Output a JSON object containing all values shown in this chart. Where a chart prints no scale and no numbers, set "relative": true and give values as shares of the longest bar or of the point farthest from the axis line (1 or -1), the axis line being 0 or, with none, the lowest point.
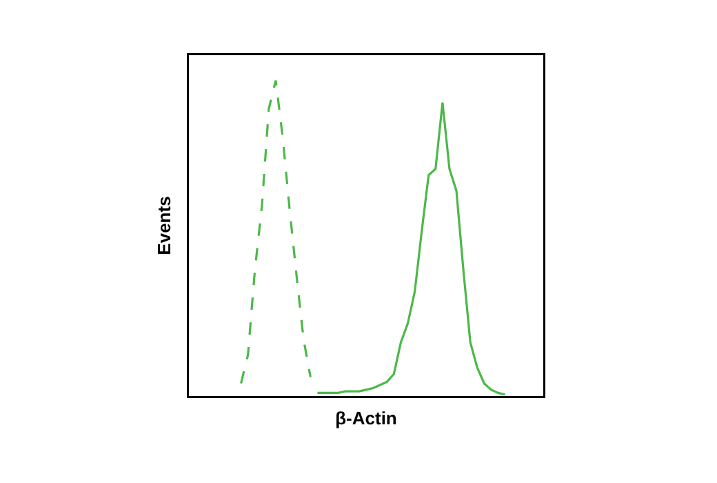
{
  "chart_data": {
    "type": "line",
    "relative": true,
    "xlabel": "β-Actin",
    "ylabel": "Events",
    "categories": [
      null,
      null,
      null,
      null,
      null,
      null,
      null,
      null,
      null,
      null,
      null,
      null,
      null,
      null,
      null,
      null,
      null,
      null,
      null,
      null,
      null,
      null,
      null,
      null,
      null,
      null,
      null,
      null,
      null,
      null,
      null,
      null,
      null,
      null,
      null,
      null,
      null,
      null,
      null,
      null,
      null,
      null,
      null,
      null,
      null,
      null,
      null,
      null,
      null,
      null,
      null
    ],
    "series": [
      {
        "color": "#4cb848",
        "line_style": "solid",
        "values": [
          null,
          null,
          null,
          null,
          null,
          null,
          null,
          null,
          null,
          null,
          null,
          null,
          null,
          null,
          null,
          null,
          null,
          null,
          0.01,
          0.01,
          0.01,
          0.01,
          0.015,
          0.015,
          0.015,
          0.02,
          0.025,
          0.035,
          0.045,
          0.07,
          0.17,
          0.23,
          0.33,
          0.52,
          0.7,
          0.72,
          0.93,
          0.72,
          0.65,
          0.4,
          0.17,
          0.09,
          0.04,
          0.02,
          0.01,
          0.005,
          null,
          null,
          null,
          null,
          null
        ]
      },
      {
        "color": "#4cb848",
        "line_style": "dashed",
        "values": [
          null,
          null,
          null,
          null,
          null,
          null,
          null,
          0.04,
          0.13,
          0.4,
          0.6,
          0.91,
          1,
          0.82,
          0.59,
          0.38,
          0.18,
          0.06,
          null,
          null,
          null,
          null,
          null,
          null,
          null,
          null,
          null,
          null,
          null,
          null,
          null,
          null,
          null,
          null,
          null,
          null,
          null,
          null,
          null,
          null,
          null,
          null,
          null,
          null,
          null,
          null,
          null,
          null,
          null,
          null,
          null
        ]
      }
    ]
  }
}
